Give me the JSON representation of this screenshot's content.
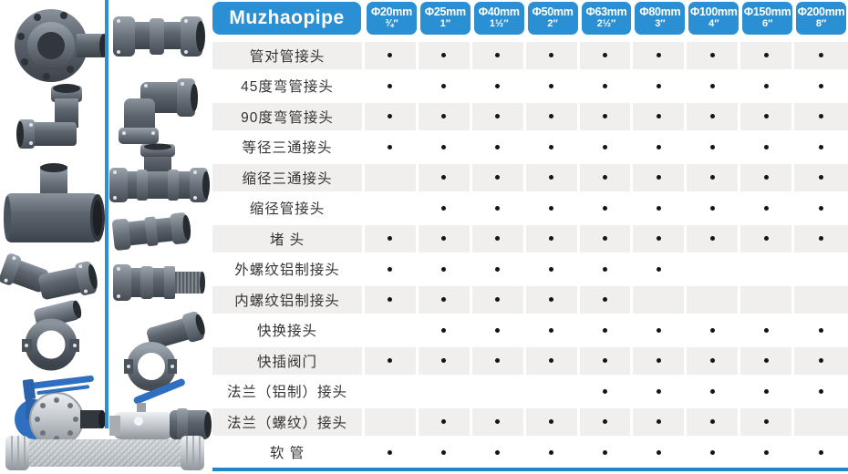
{
  "brand": "Muzhaopipe",
  "colors": {
    "header_blue": "#2B90D3",
    "rule_blue": "#1F87CB",
    "stripe_gray": "#F0EFEE",
    "dot_black": "#151515",
    "fitting_gray": "#5D656F",
    "valve_blue": "#2F6FC0"
  },
  "table": {
    "columns": [
      {
        "size": "Φ20mm",
        "inch": "¾″"
      },
      {
        "size": "Φ25mm",
        "inch": "1″"
      },
      {
        "size": "Φ40mm",
        "inch": "1½″"
      },
      {
        "size": "Φ50mm",
        "inch": "2″"
      },
      {
        "size": "Φ63mm",
        "inch": "2½″"
      },
      {
        "size": "Φ80mm",
        "inch": "3″"
      },
      {
        "size": "Φ100mm",
        "inch": "4″"
      },
      {
        "size": "Φ150mm",
        "inch": "6″"
      },
      {
        "size": "Φ200mm",
        "inch": "8″"
      }
    ],
    "availability_marker": "•",
    "rows": [
      {
        "label": "管对管接头",
        "available": [
          1,
          1,
          1,
          1,
          1,
          1,
          1,
          1,
          1
        ]
      },
      {
        "label": "45度弯管接头",
        "available": [
          1,
          1,
          1,
          1,
          1,
          1,
          1,
          1,
          1
        ]
      },
      {
        "label": "90度弯管接头",
        "available": [
          1,
          1,
          1,
          1,
          1,
          1,
          1,
          1,
          1
        ]
      },
      {
        "label": "等径三通接头",
        "available": [
          1,
          1,
          1,
          1,
          1,
          1,
          1,
          1,
          1
        ]
      },
      {
        "label": "缩径三通接头",
        "available": [
          0,
          1,
          1,
          1,
          1,
          1,
          1,
          1,
          1
        ]
      },
      {
        "label": "缩径管接头",
        "available": [
          0,
          1,
          1,
          1,
          1,
          1,
          1,
          1,
          1
        ]
      },
      {
        "label": "堵 头",
        "available": [
          1,
          1,
          1,
          1,
          1,
          1,
          1,
          1,
          1
        ]
      },
      {
        "label": "外螺纹铝制接头",
        "available": [
          1,
          1,
          1,
          1,
          1,
          1,
          0,
          0,
          0
        ]
      },
      {
        "label": "内螺纹铝制接头",
        "available": [
          1,
          1,
          1,
          1,
          1,
          0,
          0,
          0,
          0
        ]
      },
      {
        "label": "快换接头",
        "available": [
          0,
          1,
          1,
          1,
          1,
          1,
          1,
          1,
          1
        ]
      },
      {
        "label": "快插阀门",
        "available": [
          1,
          1,
          1,
          1,
          1,
          1,
          1,
          1,
          1
        ]
      },
      {
        "label": "法兰（铝制）接头",
        "available": [
          0,
          0,
          0,
          0,
          1,
          1,
          1,
          1,
          1
        ]
      },
      {
        "label": "法兰（螺纹）接头",
        "available": [
          0,
          1,
          1,
          1,
          1,
          1,
          1,
          1,
          0
        ]
      },
      {
        "label": "软 管",
        "available": [
          1,
          1,
          1,
          1,
          1,
          1,
          1,
          1,
          1
        ]
      }
    ]
  },
  "gallery": {
    "items": [
      "flange-adapter",
      "pvc-elbow-90",
      "reducing-tee",
      "elbow-45-coupling",
      "clamp-saddle-elbow",
      "butterfly-valve",
      "compression-coupling",
      "compression-elbow-90",
      "compression-tee",
      "compression-coupling-angled",
      "male-thread-adapter",
      "clamp-saddle",
      "ball-valve",
      "braided-hose"
    ]
  }
}
